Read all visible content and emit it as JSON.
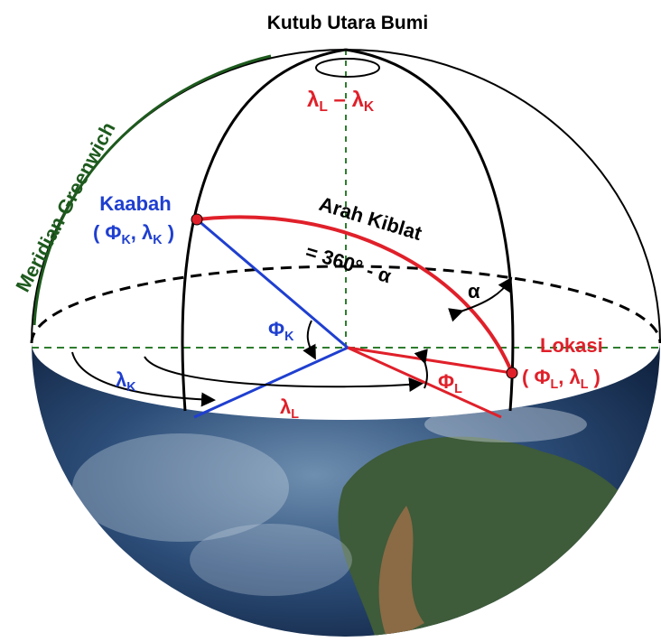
{
  "labels": {
    "north_pole": "Kutub Utara Bumi",
    "lambda_diff": [
      "λ",
      "L",
      " – λ",
      "K"
    ],
    "meridian": "Meridian Greenwich",
    "kaabah": "Kaabah",
    "kaabah_coords": [
      "( Φ",
      "K",
      ", λ",
      "K",
      " )"
    ],
    "arah_kiblat": "Arah Kiblat",
    "formula": "= 360° - α",
    "alpha": "α",
    "phi_k": [
      "Φ",
      "K"
    ],
    "lambda_k": [
      "λ",
      "K"
    ],
    "lambda_l": [
      "λ",
      "L"
    ],
    "phi_l": [
      "Φ",
      "L"
    ],
    "lokasi": "Lokasi",
    "lokasi_coords": [
      "( Φ",
      "L",
      ", λ",
      "L",
      " )"
    ]
  }
}
